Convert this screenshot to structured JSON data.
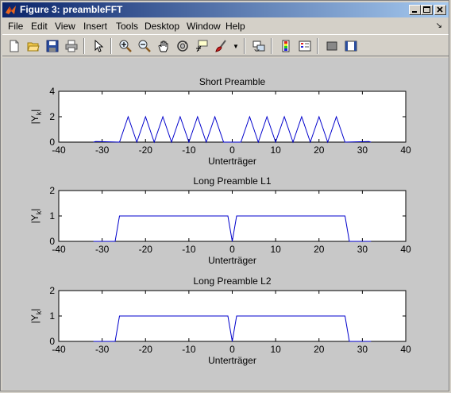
{
  "window": {
    "title": "Figure 3: preambleFFT"
  },
  "menu": {
    "items": [
      "File",
      "Edit",
      "View",
      "Insert",
      "Tools",
      "Desktop",
      "Window",
      "Help"
    ]
  },
  "toolbar": {
    "icons": [
      "new-figure-icon",
      "open-file-icon",
      "save-icon",
      "print-icon",
      "edit-plot-arrow-icon",
      "zoom-in-icon",
      "zoom-out-icon",
      "pan-hand-icon",
      "rotate-3d-icon",
      "data-cursor-icon",
      "brush-icon",
      "link-plot-icon",
      "insert-colorbar-icon",
      "insert-legend-icon",
      "hide-plot-tools-icon",
      "show-plot-tools-icon"
    ]
  },
  "colors": {
    "line": "#0000cc",
    "figure_bg": "#c8c8c8",
    "axes_bg": "#ffffff"
  },
  "chart_data": [
    {
      "type": "line",
      "title": "Short Preamble",
      "xlabel": "Unterträger",
      "ylabel": "|Y_k|",
      "xlim": [
        -40,
        40
      ],
      "ylim": [
        0,
        4
      ],
      "xticks": [
        -40,
        -30,
        -20,
        -10,
        0,
        10,
        20,
        30,
        40
      ],
      "yticks": [
        0,
        2,
        4
      ],
      "series": [
        {
          "x": [
            -32,
            -31.5,
            -26,
            -24,
            -22,
            -20,
            -18,
            -16,
            -14,
            -12,
            -10,
            -8,
            -6,
            -4,
            -2,
            0,
            2,
            4,
            6,
            8,
            10,
            12,
            14,
            16,
            18,
            20,
            22,
            24,
            26,
            31.5,
            32
          ],
          "values": [
            0,
            0.05,
            0,
            2,
            0,
            2,
            0,
            2,
            0,
            2,
            0,
            2,
            0,
            2,
            0,
            0,
            0,
            2,
            0,
            2,
            0,
            2,
            0,
            2,
            0,
            2,
            0,
            2,
            0,
            0.05,
            0
          ]
        }
      ]
    },
    {
      "type": "line",
      "title": "Long Preamble L1",
      "xlabel": "Unterträger",
      "ylabel": "|Y_k|",
      "xlim": [
        -40,
        40
      ],
      "ylim": [
        0,
        2
      ],
      "xticks": [
        -40,
        -30,
        -20,
        -10,
        0,
        10,
        20,
        30,
        40
      ],
      "yticks": [
        0,
        1,
        2
      ],
      "series": [
        {
          "x": [
            -32,
            -27,
            -26,
            -1,
            0,
            1,
            26,
            27,
            32
          ],
          "values": [
            0,
            0,
            1,
            1,
            0,
            1,
            1,
            0,
            0
          ]
        }
      ]
    },
    {
      "type": "line",
      "title": "Long Preamble L2",
      "xlabel": "Unterträger",
      "ylabel": "|Y_k|",
      "xlim": [
        -40,
        40
      ],
      "ylim": [
        0,
        2
      ],
      "xticks": [
        -40,
        -30,
        -20,
        -10,
        0,
        10,
        20,
        30,
        40
      ],
      "yticks": [
        0,
        1,
        2
      ],
      "series": [
        {
          "x": [
            -32,
            -27,
            -26,
            -1,
            0,
            1,
            26,
            27,
            32
          ],
          "values": [
            0,
            0,
            1,
            1,
            0,
            1,
            1,
            0,
            0
          ]
        }
      ]
    }
  ]
}
